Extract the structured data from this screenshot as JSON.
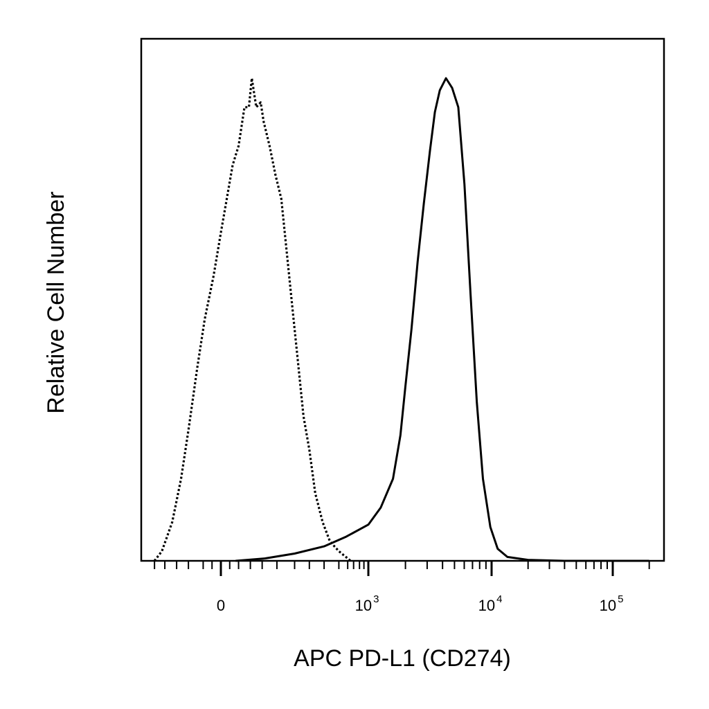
{
  "chart_data": {
    "type": "area",
    "xlabel": "APC PD-L1 (CD274)",
    "ylabel": "Relative Cell Number",
    "x_scale": "biexponential",
    "x_ticks": [
      {
        "base": "0",
        "exp": ""
      },
      {
        "base": "10",
        "exp": "3"
      },
      {
        "base": "10",
        "exp": "4"
      },
      {
        "base": "10",
        "exp": "5"
      }
    ],
    "y_ticks": [],
    "ylim": [
      0,
      100
    ],
    "grid": false,
    "legend": "none",
    "series": [
      {
        "style": "dotted",
        "color": "#000000",
        "points": [
          [
            -0.45,
            0
          ],
          [
            -0.4,
            2
          ],
          [
            -0.33,
            8
          ],
          [
            -0.27,
            17
          ],
          [
            -0.22,
            27
          ],
          [
            -0.16,
            40
          ],
          [
            -0.11,
            50
          ],
          [
            -0.05,
            59
          ],
          [
            0.0,
            68
          ],
          [
            0.04,
            75
          ],
          [
            0.08,
            82
          ],
          [
            0.12,
            86
          ],
          [
            0.16,
            94
          ],
          [
            0.19,
            94
          ],
          [
            0.21,
            100
          ],
          [
            0.24,
            94
          ],
          [
            0.27,
            95
          ],
          [
            0.29,
            91
          ],
          [
            0.33,
            86
          ],
          [
            0.37,
            80
          ],
          [
            0.41,
            75
          ],
          [
            0.44,
            66
          ],
          [
            0.48,
            54
          ],
          [
            0.52,
            42
          ],
          [
            0.56,
            30
          ],
          [
            0.6,
            23
          ],
          [
            0.64,
            14
          ],
          [
            0.69,
            8
          ],
          [
            0.74,
            4
          ],
          [
            0.8,
            2
          ],
          [
            0.88,
            0
          ]
        ]
      },
      {
        "style": "solid",
        "color": "#000000",
        "points": [
          [
            0.1,
            0
          ],
          [
            0.3,
            0.5
          ],
          [
            0.5,
            1.5
          ],
          [
            0.7,
            3
          ],
          [
            0.85,
            5
          ],
          [
            1.0,
            7.5
          ],
          [
            1.1,
            11
          ],
          [
            1.2,
            17
          ],
          [
            1.26,
            26
          ],
          [
            1.3,
            36
          ],
          [
            1.35,
            48
          ],
          [
            1.4,
            62
          ],
          [
            1.45,
            74
          ],
          [
            1.5,
            85
          ],
          [
            1.54,
            93
          ],
          [
            1.58,
            97.5
          ],
          [
            1.63,
            100
          ],
          [
            1.68,
            98
          ],
          [
            1.73,
            94
          ],
          [
            1.78,
            78
          ],
          [
            1.83,
            55
          ],
          [
            1.88,
            33
          ],
          [
            1.93,
            17
          ],
          [
            1.99,
            7
          ],
          [
            2.05,
            2.5
          ],
          [
            2.13,
            0.8
          ],
          [
            2.3,
            0.2
          ],
          [
            2.6,
            0
          ],
          [
            3.3,
            0
          ]
        ]
      }
    ]
  }
}
